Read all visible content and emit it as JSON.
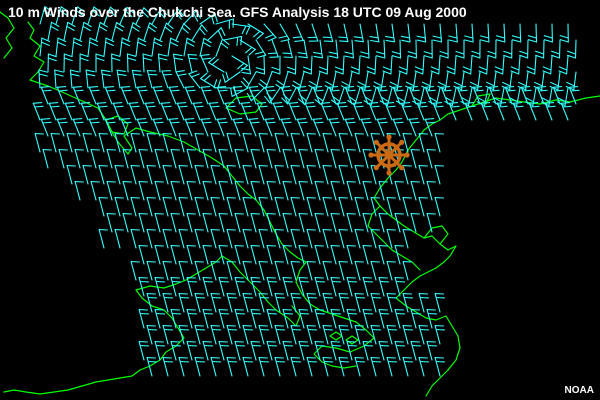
{
  "map": {
    "title": "10 m Winds over the Chukchi Sea. GFS Analysis 18 UTC 09 Aug 2000",
    "credit": "NOAA",
    "background_color": "#000000",
    "coastline_color": "#00ff00",
    "wind_barb_color": "#33ffff",
    "text_color": "#ffffff",
    "ship_icon": "ship-wheel-icon",
    "ship_icon_color": "#cc6a14"
  }
}
